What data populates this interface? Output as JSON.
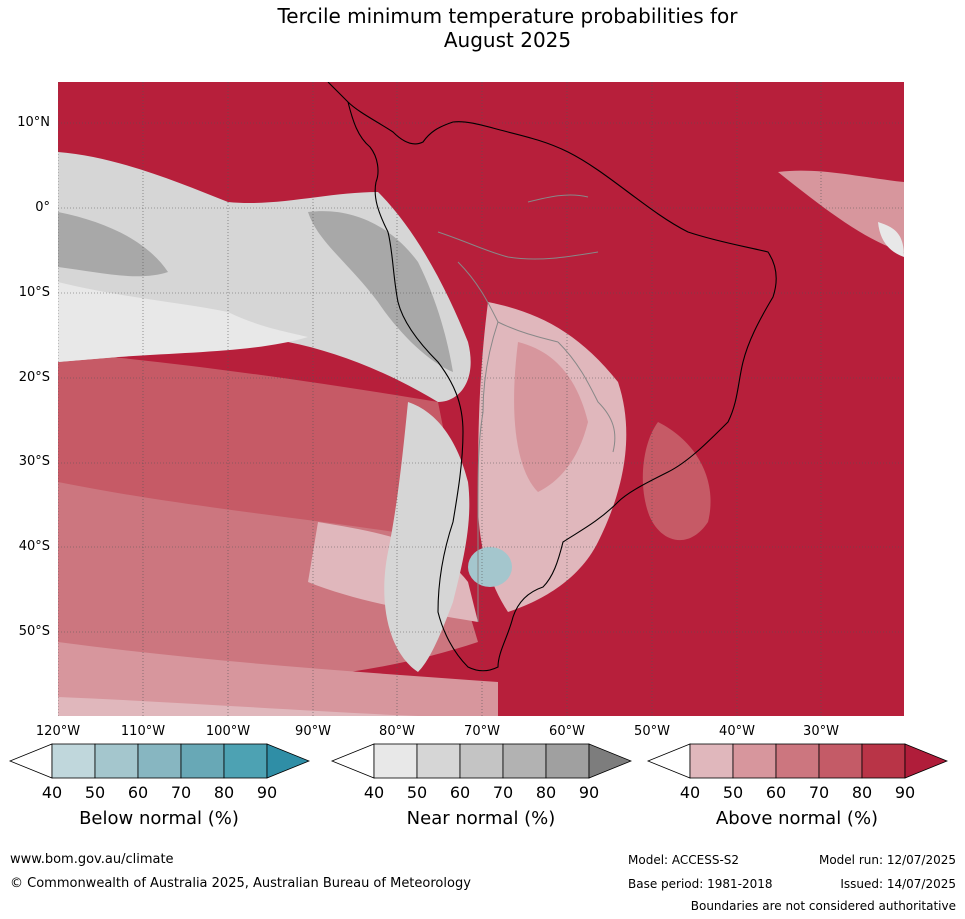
{
  "title_line1": "Tercile minimum temperature probabilities for",
  "title_line2": "August 2025",
  "lat_labels": [
    "10°N",
    "0°",
    "10°S",
    "20°S",
    "30°S",
    "40°S",
    "50°S"
  ],
  "lon_labels": [
    "120°W",
    "110°W",
    "100°W",
    "90°W",
    "80°W",
    "70°W",
    "60°W",
    "50°W",
    "40°W",
    "30°W"
  ],
  "colorbars": [
    {
      "label": "Below normal (%)",
      "ticks": [
        "40",
        "50",
        "60",
        "70",
        "80",
        "90"
      ],
      "colors": [
        "#ffffff",
        "#c0d7dc",
        "#a4c6cd",
        "#87b6c1",
        "#68a8b6",
        "#4da2b3",
        "#2f8ea6"
      ]
    },
    {
      "label": "Near normal (%)",
      "ticks": [
        "40",
        "50",
        "60",
        "70",
        "80",
        "90"
      ],
      "colors": [
        "#ffffff",
        "#e8e8e8",
        "#d6d6d6",
        "#c4c4c4",
        "#b2b2b2",
        "#a0a0a0",
        "#7d7d7d"
      ]
    },
    {
      "label": "Above normal (%)",
      "ticks": [
        "40",
        "50",
        "60",
        "70",
        "80",
        "90"
      ],
      "colors": [
        "#ffffff",
        "#e0b7bc",
        "#d7969d",
        "#cc767f",
        "#c45b67",
        "#b93447",
        "#b01d3a"
      ]
    }
  ],
  "footer": {
    "website": "www.bom.gov.au/climate",
    "copyright": "© Commonwealth of Australia 2025, Australian Bureau of Meteorology",
    "model": "Model: ACCESS-S2",
    "model_run": "Model run: 12/07/2025",
    "base_period": "Base period: 1981-2018",
    "issued": "Issued: 14/07/2025",
    "disclaimer": "Boundaries are not considered authoritative"
  }
}
